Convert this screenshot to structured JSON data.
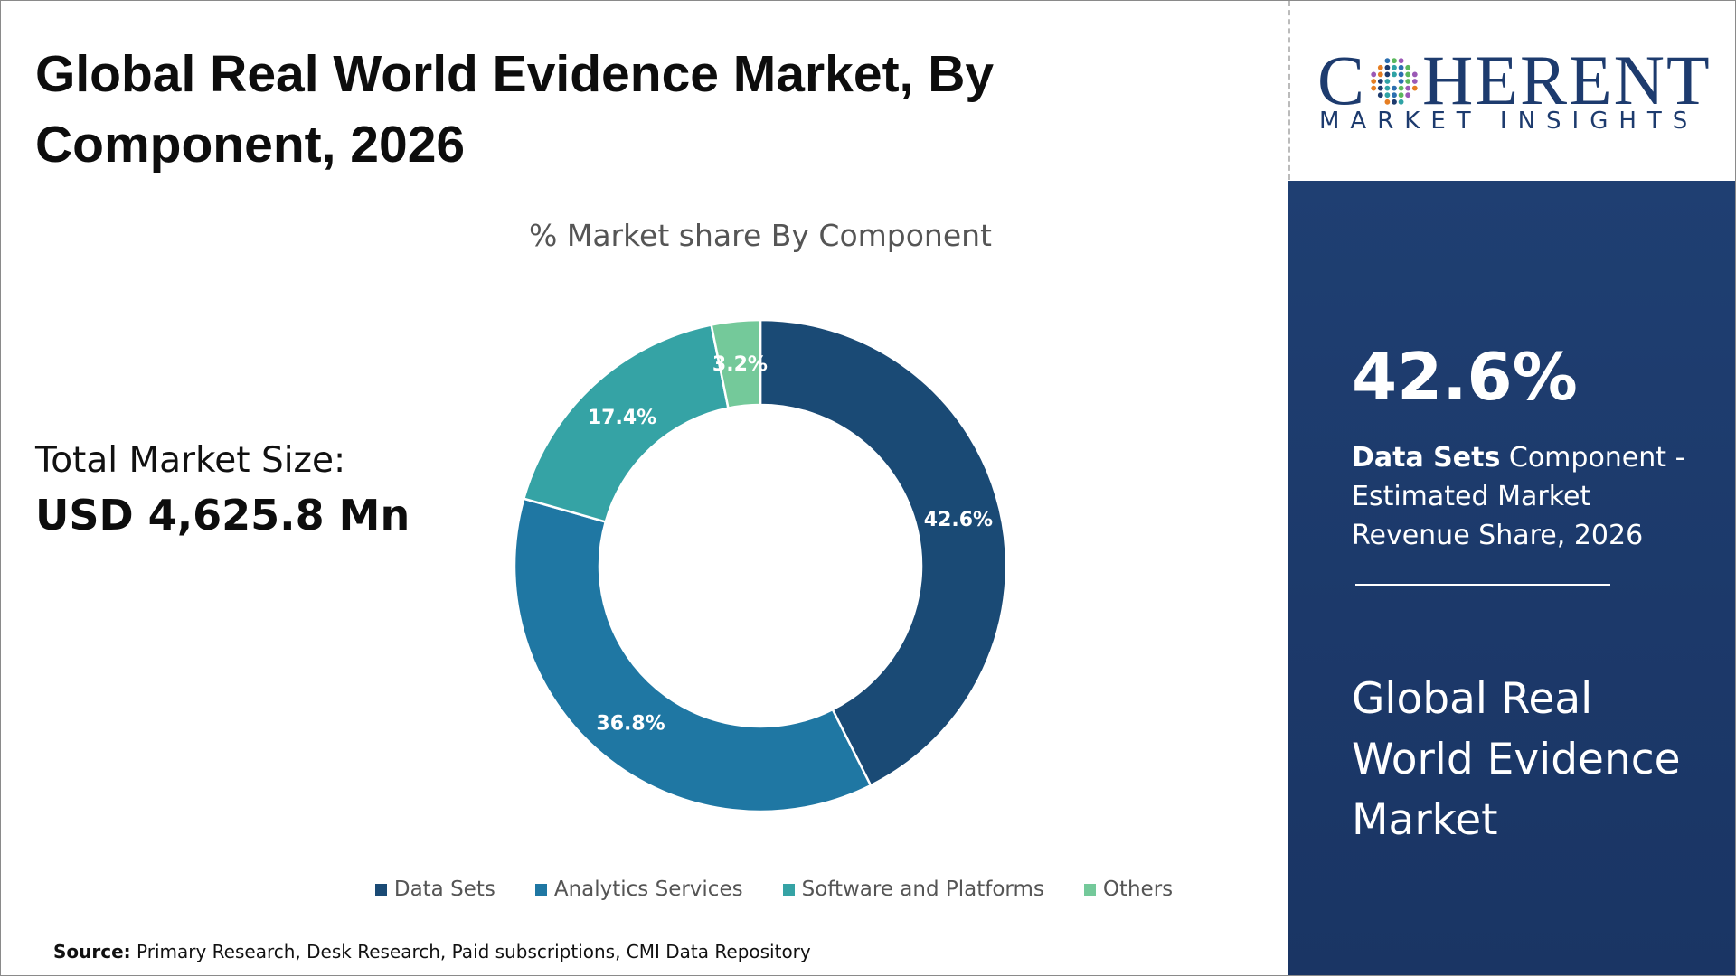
{
  "header": {
    "title": "Global Real World Evidence Market, By Component, 2026"
  },
  "summary": {
    "total_label": "Total Market Size:",
    "total_value": "USD 4,625.8 Mn"
  },
  "chart_data": {
    "type": "pie",
    "style": "donut",
    "title": "% Market share By Component",
    "categories": [
      "Data Sets",
      "Analytics Services",
      "Software and Platforms",
      "Others"
    ],
    "values": [
      42.6,
      36.8,
      17.4,
      3.2
    ],
    "labels": [
      "42.6%",
      "36.8%",
      "17.4%",
      "3.2%"
    ],
    "unit": "%",
    "colors": [
      "#1a4a75",
      "#1f77a3",
      "#35a3a5",
      "#74c99a"
    ],
    "legend": "bottom"
  },
  "source": {
    "label": "Source:",
    "text": "Primary Research, Desk Research, Paid subscriptions, CMI Data Repository"
  },
  "brand": {
    "name_prefix": "C",
    "name_suffix": "HERENT",
    "tagline": "MARKET INSIGHTS",
    "color": "#1d3b6e"
  },
  "highlight": {
    "share": "42.6%",
    "segment": "Data Sets",
    "description": "Component - Estimated Market Revenue Share, 2026",
    "market_name": "Global Real World Evidence Market",
    "panel_color": "#1c396a"
  }
}
